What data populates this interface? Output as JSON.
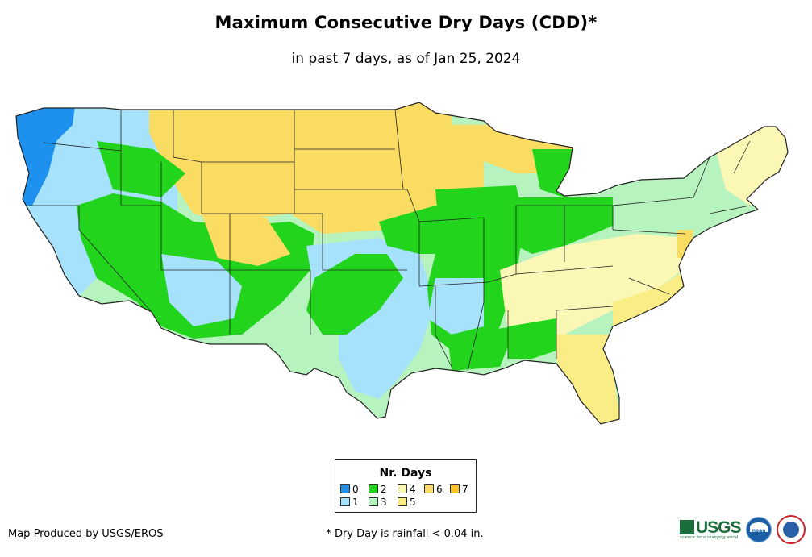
{
  "header": {
    "title": "Maximum Consecutive Dry Days (CDD)*",
    "subtitle": "in past 7 days, as of Jan 25, 2024"
  },
  "legend": {
    "title": "Nr. Days",
    "items": [
      {
        "label": "0",
        "color": "#1e90ee"
      },
      {
        "label": "1",
        "color": "#a6e2fb"
      },
      {
        "label": "2",
        "color": "#22d41c"
      },
      {
        "label": "3",
        "color": "#b7f3be"
      },
      {
        "label": "4",
        "color": "#fbf7b4"
      },
      {
        "label": "5",
        "color": "#fbed86"
      },
      {
        "label": "6",
        "color": "#fbdc62"
      },
      {
        "label": "7",
        "color": "#fbc423"
      }
    ]
  },
  "footer": {
    "credit": "Map Produced by USGS/EROS",
    "footnote": "* Dry Day is rainfall < 0.04 in.",
    "usgs_text": "USGS",
    "usgs_tagline": "science for a changing world",
    "noaa_text": "noaa"
  },
  "map": {
    "region": "conterminous-united-states",
    "outline_color": "#222222",
    "background_color": "#ffffff"
  }
}
